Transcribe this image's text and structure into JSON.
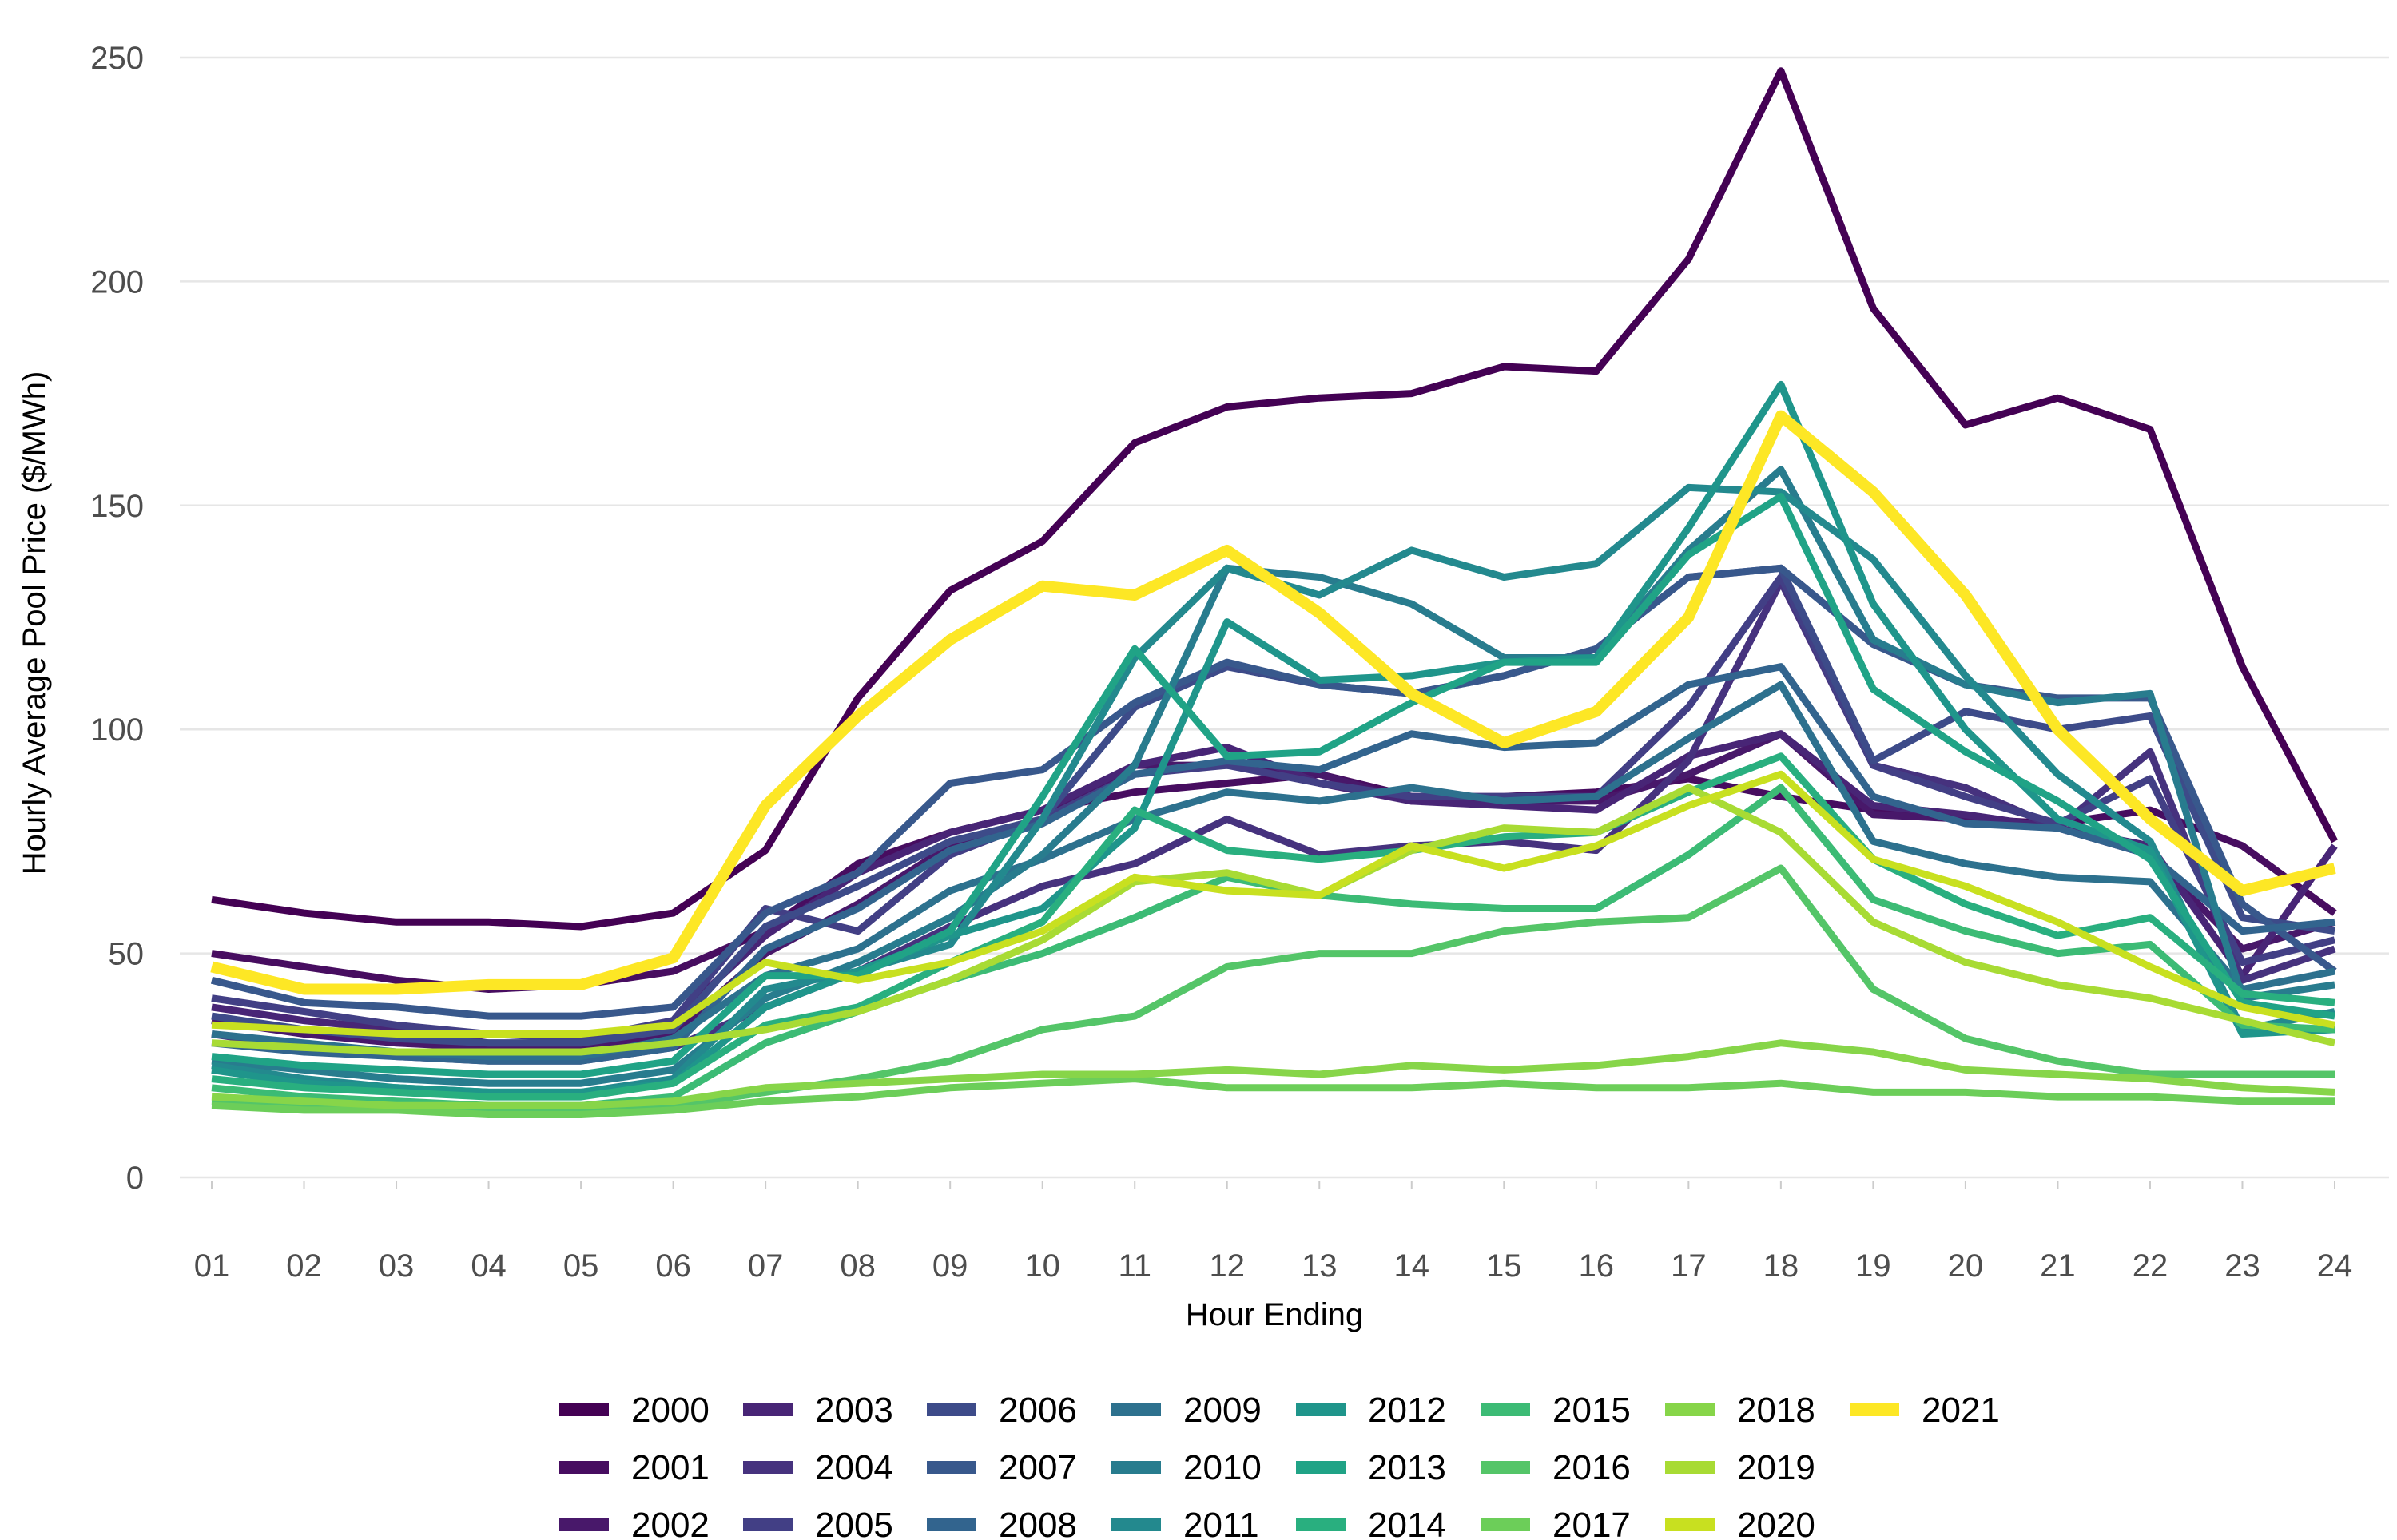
{
  "chart_data": {
    "type": "line",
    "xlabel": "Hour Ending",
    "ylabel": "Hourly Average Pool Price ($/MWh)",
    "ylim": [
      0,
      250
    ],
    "yticks": [
      0,
      50,
      100,
      150,
      200,
      250
    ],
    "grid": "horizontal major gridlines",
    "legend_position": "bottom",
    "categories": [
      "01",
      "02",
      "03",
      "04",
      "05",
      "06",
      "07",
      "08",
      "09",
      "10",
      "11",
      "12",
      "13",
      "14",
      "15",
      "16",
      "17",
      "18",
      "19",
      "20",
      "21",
      "22",
      "23",
      "24"
    ],
    "series": [
      {
        "name": "2000",
        "color": "#440154",
        "values": [
          62,
          59,
          57,
          57,
          56,
          59,
          73,
          107,
          131,
          142,
          164,
          172,
          174,
          175,
          181,
          180,
          205,
          247,
          194,
          168,
          174,
          167,
          114,
          75
        ]
      },
      {
        "name": "2001",
        "color": "#470D60",
        "values": [
          50,
          47,
          44,
          42,
          43,
          46,
          55,
          70,
          77,
          82,
          86,
          88,
          90,
          85,
          85,
          86,
          89,
          85,
          82,
          80,
          79,
          82,
          74,
          59
        ]
      },
      {
        "name": "2002",
        "color": "#48186A",
        "values": [
          35,
          32,
          30,
          29,
          29,
          32,
          50,
          61,
          74,
          80,
          92,
          92,
          90,
          84,
          84,
          84,
          90,
          99,
          81,
          80,
          78,
          72,
          51,
          57
        ]
      },
      {
        "name": "2003",
        "color": "#482576",
        "values": [
          38,
          35,
          33,
          30,
          30,
          35,
          54,
          68,
          77,
          82,
          92,
          96,
          88,
          84,
          83,
          82,
          94,
          99,
          83,
          81,
          78,
          74,
          45,
          74
        ]
      },
      {
        "name": "2004",
        "color": "#46327E",
        "values": [
          32,
          29,
          27,
          26,
          26,
          29,
          38,
          46,
          56,
          65,
          70,
          80,
          72,
          74,
          75,
          73,
          93,
          133,
          92,
          87,
          78,
          95,
          44,
          51
        ]
      },
      {
        "name": "2005",
        "color": "#423F85",
        "values": [
          40,
          37,
          34,
          32,
          31,
          35,
          60,
          55,
          72,
          80,
          90,
          92,
          88,
          85,
          85,
          85,
          105,
          134,
          92,
          85,
          79,
          89,
          48,
          53
        ]
      },
      {
        "name": "2006",
        "color": "#3D4B89",
        "values": [
          36,
          33,
          31,
          30,
          30,
          33,
          56,
          65,
          75,
          80,
          105,
          114,
          110,
          108,
          112,
          118,
          134,
          136,
          93,
          104,
          100,
          103,
          58,
          55
        ]
      },
      {
        "name": "2007",
        "color": "#38588C",
        "values": [
          44,
          39,
          38,
          36,
          36,
          38,
          59,
          68,
          88,
          91,
          106,
          115,
          110,
          108,
          112,
          118,
          134,
          136,
          119,
          110,
          107,
          107,
          61,
          46
        ]
      },
      {
        "name": "2008",
        "color": "#32648E",
        "values": [
          30,
          28,
          27,
          26,
          26,
          29,
          51,
          60,
          73,
          79,
          90,
          93,
          91,
          99,
          96,
          97,
          110,
          114,
          85,
          79,
          78,
          72,
          55,
          57
        ]
      },
      {
        "name": "2009",
        "color": "#2D718E",
        "values": [
          32,
          30,
          28,
          27,
          27,
          31,
          45,
          51,
          64,
          71,
          80,
          86,
          84,
          87,
          84,
          85,
          98,
          110,
          75,
          70,
          67,
          66,
          42,
          46
        ]
      },
      {
        "name": "2010",
        "color": "#287C8E",
        "values": [
          26,
          24,
          22,
          21,
          21,
          24,
          40,
          48,
          58,
          72,
          92,
          136,
          134,
          128,
          116,
          116,
          140,
          158,
          120,
          110,
          106,
          108,
          40,
          43
        ]
      },
      {
        "name": "2011",
        "color": "#23898E",
        "values": [
          25,
          22,
          20,
          19,
          19,
          22,
          42,
          46,
          52,
          80,
          116,
          136,
          130,
          140,
          134,
          137,
          154,
          153,
          138,
          112,
          90,
          75,
          33,
          37
        ]
      },
      {
        "name": "2012",
        "color": "#1F958B",
        "values": [
          24,
          21,
          20,
          19,
          19,
          21,
          38,
          46,
          54,
          60,
          78,
          124,
          111,
          112,
          115,
          116,
          145,
          177,
          128,
          100,
          80,
          73,
          32,
          33
        ]
      },
      {
        "name": "2013",
        "color": "#20A386",
        "values": [
          27,
          25,
          24,
          23,
          23,
          26,
          45,
          45,
          55,
          85,
          118,
          94,
          95,
          106,
          115,
          115,
          139,
          152,
          109,
          95,
          84,
          71,
          39,
          36
        ]
      },
      {
        "name": "2014",
        "color": "#29AF7F",
        "values": [
          22,
          20,
          19,
          18,
          18,
          21,
          34,
          38,
          48,
          57,
          82,
          73,
          71,
          73,
          76,
          77,
          86,
          94,
          71,
          61,
          54,
          58,
          41,
          39
        ]
      },
      {
        "name": "2015",
        "color": "#3CBB75",
        "values": [
          20,
          18,
          17,
          16,
          16,
          18,
          30,
          37,
          44,
          50,
          58,
          67,
          63,
          61,
          60,
          60,
          72,
          87,
          62,
          55,
          50,
          52,
          34,
          33
        ]
      },
      {
        "name": "2016",
        "color": "#54C568",
        "values": [
          17,
          16,
          15,
          15,
          15,
          16,
          19,
          22,
          26,
          33,
          36,
          47,
          50,
          50,
          55,
          57,
          58,
          69,
          42,
          31,
          26,
          23,
          23,
          23
        ]
      },
      {
        "name": "2017",
        "color": "#6CCE59",
        "values": [
          16,
          15,
          15,
          14,
          14,
          15,
          17,
          18,
          20,
          21,
          22,
          20,
          20,
          20,
          21,
          20,
          20,
          21,
          19,
          19,
          18,
          18,
          17,
          17
        ]
      },
      {
        "name": "2018",
        "color": "#87D549",
        "values": [
          18,
          17,
          16,
          16,
          16,
          17,
          20,
          21,
          22,
          23,
          23,
          24,
          23,
          25,
          24,
          25,
          27,
          30,
          28,
          24,
          23,
          22,
          20,
          19
        ]
      },
      {
        "name": "2019",
        "color": "#A8DB34",
        "values": [
          30,
          29,
          28,
          28,
          28,
          30,
          33,
          37,
          44,
          53,
          66,
          68,
          63,
          73,
          78,
          77,
          87,
          77,
          57,
          48,
          43,
          40,
          35,
          30
        ]
      },
      {
        "name": "2020",
        "color": "#C8E020",
        "values": [
          34,
          33,
          32,
          32,
          32,
          34,
          48,
          44,
          48,
          55,
          67,
          64,
          63,
          74,
          69,
          74,
          83,
          90,
          71,
          65,
          57,
          47,
          38,
          34
        ]
      },
      {
        "name": "2021",
        "color": "#FDE725",
        "values": [
          47,
          42,
          42,
          43,
          43,
          49,
          83,
          103,
          120,
          132,
          130,
          140,
          126,
          108,
          97,
          104,
          125,
          170,
          153,
          130,
          100,
          80,
          64,
          69
        ]
      }
    ]
  }
}
